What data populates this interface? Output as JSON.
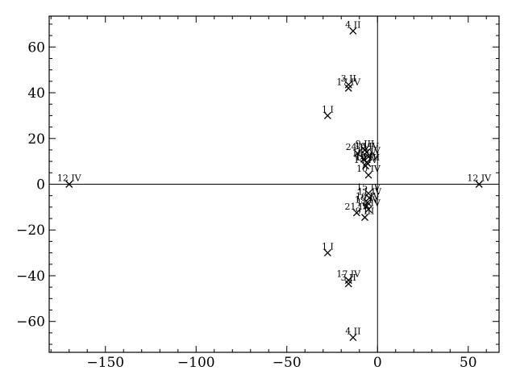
{
  "chart_data": {
    "type": "scatter",
    "marker": "x",
    "color": "#000000",
    "grid": false,
    "xlim": [
      -181,
      67
    ],
    "ylim": [
      -73.5,
      73.5
    ],
    "x_ticks": [
      -150,
      -100,
      -50,
      0,
      50
    ],
    "x_tick_labels": [
      "−150",
      "−100",
      "−50",
      "0",
      "50"
    ],
    "y_ticks": [
      -60,
      -40,
      -20,
      0,
      20,
      40,
      60
    ],
    "y_tick_labels": [
      "−60",
      "−40",
      "−20",
      "0",
      "20",
      "40",
      "60"
    ],
    "reference_lines": {
      "x": 0,
      "y": 0
    },
    "points": [
      {
        "label": "4 II",
        "x": -13.5,
        "y": 67
      },
      {
        "label": "3 II",
        "x": -16,
        "y": 43.5
      },
      {
        "label": "17 IV",
        "x": -16,
        "y": 42
      },
      {
        "label": "1 I",
        "x": -27.5,
        "y": 30
      },
      {
        "label": "9 III",
        "x": -7,
        "y": 15
      },
      {
        "label": "16 IV",
        "x": -6,
        "y": 14
      },
      {
        "label": "24 IV",
        "x": -11,
        "y": 13.5
      },
      {
        "label": "13 IV",
        "x": -5,
        "y": 12
      },
      {
        "label": "18 IV",
        "x": -7.5,
        "y": 11
      },
      {
        "label": "19 IV",
        "x": -6,
        "y": 9.5
      },
      {
        "label": "10 III",
        "x": -5.5,
        "y": 9
      },
      {
        "label": "14 IV",
        "x": -6.5,
        "y": 8
      },
      {
        "label": "10 IV",
        "x": -5,
        "y": 4
      },
      {
        "label": "12 IV",
        "x": -170,
        "y": 0
      },
      {
        "label": "12 IV",
        "x": 56,
        "y": 0
      },
      {
        "label": "15 IV",
        "x": -5,
        "y": -4
      },
      {
        "label": "11 IV",
        "x": -4.5,
        "y": -6
      },
      {
        "label": "16 IV",
        "x": -5.5,
        "y": -8
      },
      {
        "label": "19 IV",
        "x": -6,
        "y": -9.5
      },
      {
        "label": "13 IV",
        "x": -5,
        "y": -11
      },
      {
        "label": "21 IV",
        "x": -11.5,
        "y": -12.5
      },
      {
        "label": "9 III",
        "x": -7,
        "y": -14.5
      },
      {
        "label": "1 I",
        "x": -27.5,
        "y": -30
      },
      {
        "label": "17 IV",
        "x": -16,
        "y": -42
      },
      {
        "label": "3 II",
        "x": -16,
        "y": -43.5
      },
      {
        "label": "4 II",
        "x": -13.5,
        "y": -67
      }
    ]
  }
}
